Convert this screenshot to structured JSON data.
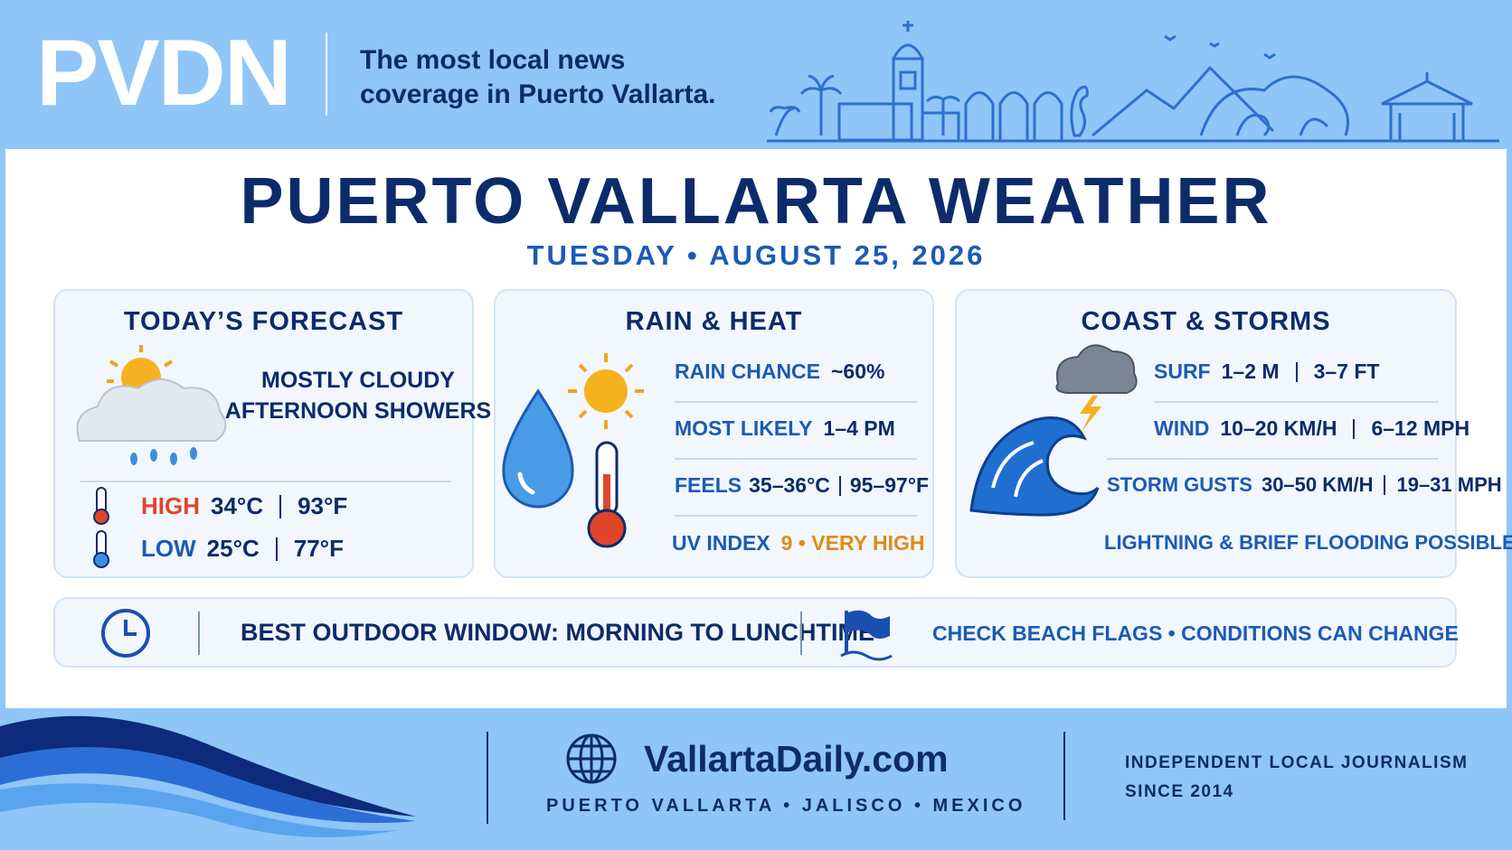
{
  "header": {
    "logo": "PVDN",
    "tagline": [
      "The most local news",
      "coverage in Puerto Vallarta."
    ]
  },
  "title": "PUERTO VALLARTA WEATHER",
  "date": "TUESDAY • AUGUST 25, 2026",
  "forecast": {
    "title": "TODAY’S FORECAST",
    "conditions": [
      "MOSTLY CLOUDY",
      "AFTERNOON SHOWERS"
    ],
    "high": {
      "label": "HIGH",
      "celsius": "34°C",
      "fahrenheit": "93°F"
    },
    "low": {
      "label": "LOW",
      "celsius": "25°C",
      "fahrenheit": "77°F"
    }
  },
  "rain_heat": {
    "title": "RAIN & HEAT",
    "rain_chance": {
      "label": "RAIN CHANCE",
      "value": "~60%"
    },
    "most_likely": {
      "label": "MOST LIKELY",
      "value": "1–4 PM"
    },
    "feels": {
      "label": "FEELS",
      "celsius": "35–36°C",
      "fahrenheit": "95–97°F"
    },
    "uv": {
      "label": "UV INDEX",
      "value": "9 • VERY HIGH"
    }
  },
  "coast": {
    "title": "COAST & STORMS",
    "surf": {
      "label": "SURF",
      "metric": "1–2 M",
      "imperial": "3–7 FT"
    },
    "wind": {
      "label": "WIND",
      "metric": "10–20 KM/H",
      "imperial": "6–12 MPH"
    },
    "gusts": {
      "label": "STORM GUSTS",
      "metric": "30–50 KM/H",
      "imperial": "19–31 MPH"
    },
    "note": "LIGHTNING & BRIEF FLOODING POSSIBLE"
  },
  "banner": {
    "outdoor": "BEST OUTDOOR WINDOW: MORNING TO LUNCHTIME",
    "beach": "CHECK BEACH FLAGS • CONDITIONS CAN CHANGE"
  },
  "footer": {
    "site": "VallartaDaily.com",
    "location": "PUERTO VALLARTA • JALISCO • MEXICO",
    "tagline": [
      "INDEPENDENT LOCAL JOURNALISM",
      "SINCE 2014"
    ]
  }
}
